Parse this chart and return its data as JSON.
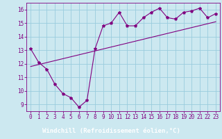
{
  "zigzag_x": [
    0,
    1,
    2,
    3,
    4,
    5,
    6,
    7,
    8,
    9,
    10,
    11,
    12,
    13,
    14,
    15,
    16,
    17,
    18,
    19,
    20,
    21,
    22,
    23
  ],
  "zigzag_y": [
    13.1,
    12.1,
    11.6,
    10.5,
    9.8,
    9.5,
    8.8,
    9.3,
    13.1,
    14.8,
    15.0,
    15.8,
    14.8,
    14.8,
    15.4,
    15.8,
    16.1,
    15.4,
    15.3,
    15.8,
    15.9,
    16.1,
    15.4,
    15.7
  ],
  "trend_x": [
    0,
    23
  ],
  "trend_y": [
    11.8,
    15.1
  ],
  "line_color": "#800080",
  "marker": "*",
  "marker_size": 3,
  "bg_color": "#cce8f0",
  "grid_color": "#99ccdd",
  "bottom_bar_color": "#800080",
  "xlabel": "Windchill (Refroidissement éolien,°C)",
  "ylabel": "",
  "xlim": [
    -0.5,
    23.5
  ],
  "ylim": [
    8.5,
    16.5
  ],
  "yticks": [
    9,
    10,
    11,
    12,
    13,
    14,
    15,
    16
  ],
  "xticks": [
    0,
    1,
    2,
    3,
    4,
    5,
    6,
    7,
    8,
    9,
    10,
    11,
    12,
    13,
    14,
    15,
    16,
    17,
    18,
    19,
    20,
    21,
    22,
    23
  ],
  "tick_fontsize": 5.5,
  "xlabel_fontsize": 6.5
}
